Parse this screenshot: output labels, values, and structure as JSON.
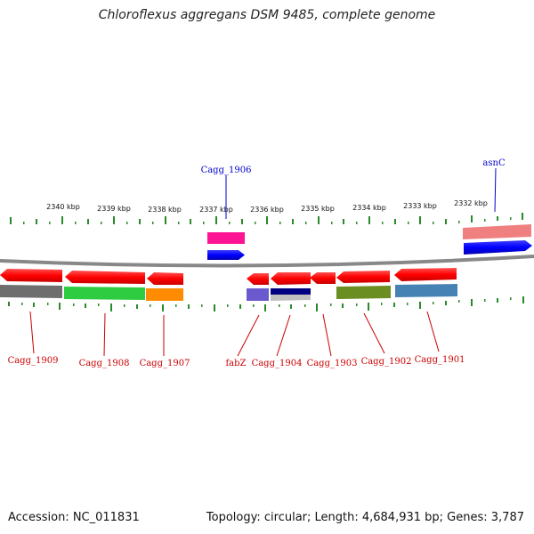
{
  "title": "Chloroflexus aggregans DSM 9485, complete genome",
  "footer": {
    "accession": "Accession: NC_011831",
    "stats": "Topology: circular; Length: 4,684,931 bp; Genes: 3,787"
  },
  "scale_labels": [
    "2340 kbp",
    "2339 kbp",
    "2338 kbp",
    "2337 kbp",
    "2336 kbp",
    "2335 kbp",
    "2334 kbp",
    "2333 kbp",
    "2332 kbp"
  ],
  "top_gene_labels": [
    "Cagg_1906",
    "asnC"
  ],
  "bottom_gene_labels": [
    "Cagg_1909",
    "Cagg_1908",
    "Cagg_1907",
    "fabZ",
    "Cagg_1904",
    "Cagg_1903",
    "Cagg_1902",
    "Cagg_1901"
  ],
  "colors": {
    "gene_arrow": "#ff0000",
    "top_arrow": "#0000ff",
    "backbone": "#888888",
    "ticks": "#2a8a2a",
    "label_red": "#cc0000",
    "label_blue": "#0000cc"
  }
}
